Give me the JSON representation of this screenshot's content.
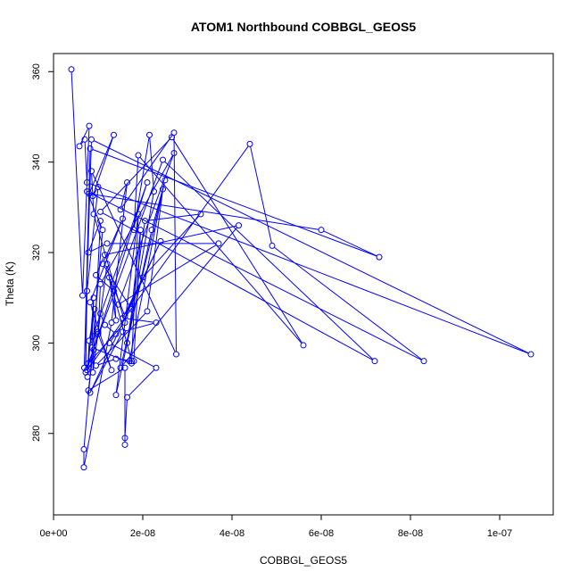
{
  "chart_data": {
    "type": "line",
    "title": "ATOM1 Northbound COBBGL_GEOS5",
    "xlabel": "COBBGL_GEOS5",
    "ylabel": "Theta (K)",
    "xlim": [
      0,
      1.12e-07
    ],
    "ylim": [
      262,
      364
    ],
    "x_ticks": [
      0,
      2e-08,
      4e-08,
      6e-08,
      8e-08,
      1e-07
    ],
    "x_tick_labels": [
      "0e+00",
      "2e-08",
      "4e-08",
      "6e-08",
      "8e-08",
      "1e-07"
    ],
    "y_ticks": [
      280,
      300,
      320,
      340,
      360
    ],
    "y_tick_labels": [
      "280",
      "300",
      "320",
      "340",
      "360"
    ],
    "grid": false,
    "series": [
      {
        "color": "#0000ff",
        "marker": "open-circle",
        "x": [
          4e-09,
          6.5e-09,
          8e-09,
          5.8e-09,
          7e-09,
          7.5e-09,
          1.07e-07,
          8.5e-09,
          6.9e-09,
          8.2e-09,
          7.3e-08,
          6e-08,
          8e-09,
          1.35e-08,
          8.8e-09,
          1e-08,
          7.5e-09,
          7.2e-09,
          4.4e-08,
          4.9e-08,
          8.3e-08,
          7.5e-09,
          1.1e-08,
          6.8e-09,
          6.8e-09,
          1.3e-08,
          1.65e-08,
          1.5e-08,
          2.7e-08,
          2.75e-08,
          8.5e-09,
          9e-09,
          1.6e-08,
          7.8e-09,
          2.45e-08,
          7.2e-08,
          1.05e-08,
          2.65e-08,
          5.6e-08,
          1.9e-08,
          1.8e-08,
          2.15e-08,
          2.25e-08,
          1.65e-08,
          2.05e-08,
          3.3e-08,
          2e-08,
          1.55e-08,
          2.3e-08,
          1.55e-08,
          8.2e-09,
          2.4e-08,
          1.6e-08,
          1.25e-08,
          1.75e-08,
          1.9e-08,
          1.4e-08,
          2.2e-08,
          2.5e-08,
          1.5e-08,
          4.15e-08,
          1.15e-08,
          9.5e-09,
          1.35e-08,
          1.4e-08,
          1.2e-08,
          8.8e-09,
          1.05e-08,
          7.8e-09,
          1.2e-08,
          3.7e-08,
          1.45e-08,
          2.7e-08,
          1.05e-08,
          1e-08,
          1.3e-08,
          8.2e-09,
          1.55e-08,
          1.1e-08,
          1.75e-08,
          1.95e-08,
          1.8e-08,
          1.4e-08,
          9.5e-09,
          2.1e-08,
          2.45e-08,
          1.7e-08,
          1.75e-08,
          8.6e-09,
          9e-09,
          7.6e-09,
          8e-09,
          9.2e-09,
          7.5e-09,
          2.1e-08,
          8.8e-09,
          1e-08,
          9e-09,
          7.8e-09,
          1.6e-08,
          1.6e-08,
          1.6e-08,
          1.65e-08,
          2.3e-08,
          1.25e-08,
          1.4e-08,
          1.15e-08,
          1.05e-08
        ],
        "y": [
          360.5,
          310.5,
          348.0,
          343.5,
          345.0,
          335.5,
          297.5,
          345.0,
          294.5,
          343.0,
          319.0,
          325.0,
          333.0,
          346.0,
          332.5,
          334.5,
          311.5,
          293.5,
          344.0,
          321.5,
          296.0,
          333.5,
          325.0,
          276.5,
          272.5,
          304.5,
          335.5,
          329.5,
          346.5,
          297.5,
          338.0,
          328.5,
          304.5,
          295.5,
          340.5,
          296.0,
          329.0,
          345.5,
          299.5,
          341.5,
          325.0,
          346.0,
          333.5,
          300.0,
          327.0,
          328.5,
          314.5,
          305.5,
          304.5,
          302.5,
          289.0,
          322.5,
          306.0,
          314.5,
          296.0,
          328.5,
          288.5,
          325.0,
          336.0,
          294.5,
          326.0,
          319.5,
          315.0,
          311.5,
          305.0,
          317.5,
          293.5,
          327.0,
          320.0,
          322.0,
          322.0,
          308.5,
          342.0,
          313.0,
          302.0,
          294.0,
          309.0,
          327.5,
          317.5,
          307.5,
          325.0,
          296.0,
          296.5,
          295.0,
          307.0,
          334.0,
          296.0,
          295.5,
          299.0,
          310.0,
          292.5,
          300.5,
          307.5,
          294.0,
          335.5,
          301.5,
          302.5,
          298.5,
          289.5,
          294.5,
          277.5,
          279.0,
          288.0,
          294.5,
          300.0,
          302.0,
          304.0,
          306.5
        ]
      }
    ]
  }
}
